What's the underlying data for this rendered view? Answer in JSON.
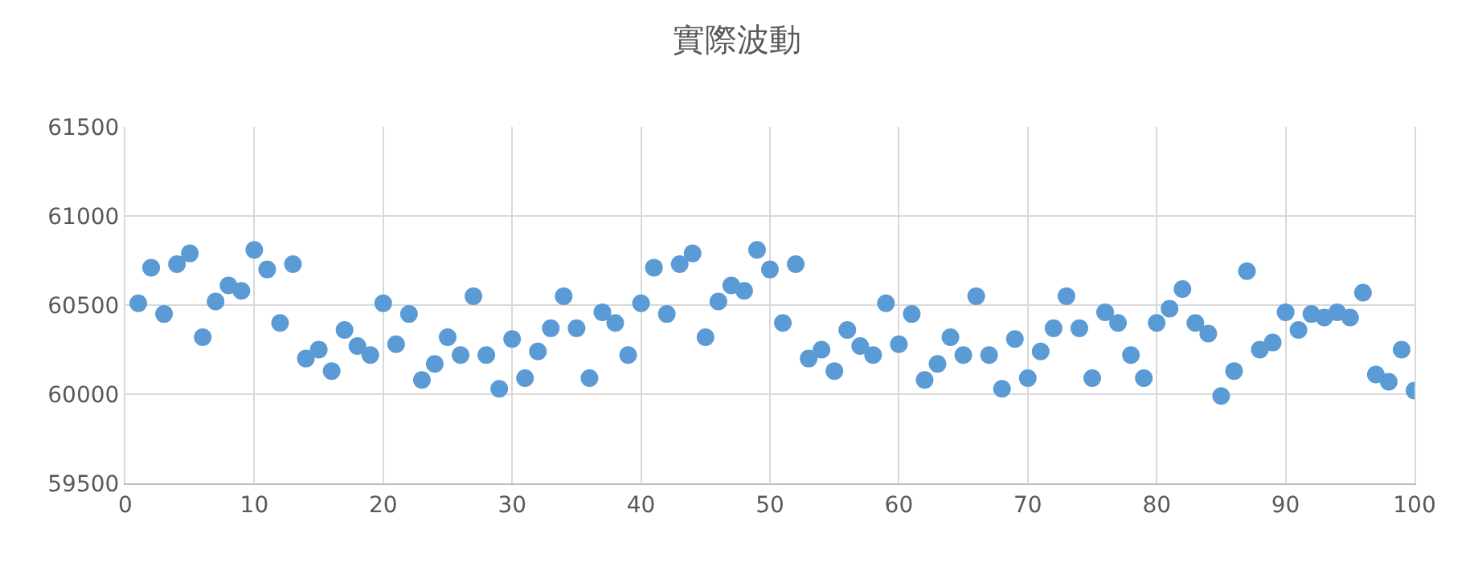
{
  "chart_data": {
    "type": "scatter",
    "title": "實際波動",
    "x": [
      1,
      2,
      3,
      4,
      5,
      6,
      7,
      8,
      9,
      10,
      11,
      12,
      13,
      14,
      15,
      16,
      17,
      18,
      19,
      20,
      21,
      22,
      23,
      24,
      25,
      26,
      27,
      28,
      29,
      30,
      31,
      32,
      33,
      34,
      35,
      36,
      37,
      38,
      39,
      40,
      41,
      42,
      43,
      44,
      45,
      46,
      47,
      48,
      49,
      50,
      51,
      52,
      53,
      54,
      55,
      56,
      57,
      58,
      59,
      60,
      61,
      62,
      63,
      64,
      65,
      66,
      67,
      68,
      69,
      70,
      71,
      72,
      73,
      74,
      75,
      76,
      77,
      78,
      79,
      80,
      81,
      82,
      83,
      84,
      85,
      86,
      87,
      88,
      89,
      90,
      91,
      92,
      93,
      94,
      95,
      96,
      97,
      98,
      99,
      100
    ],
    "series": [
      {
        "color": "#5b9bd5",
        "values": [
          60510,
          60710,
          60450,
          60730,
          60790,
          60320,
          60520,
          60610,
          60580,
          60810,
          60700,
          60400,
          60730,
          60200,
          60250,
          60130,
          60360,
          60270,
          60220,
          60510,
          60280,
          60450,
          60080,
          60170,
          60320,
          60220,
          60550,
          60220,
          60030,
          60310,
          60090,
          60240,
          60370,
          60550,
          60370,
          60090,
          60460,
          60400,
          60220,
          60510,
          60710,
          60450,
          60730,
          60790,
          60320,
          60520,
          60610,
          60580,
          60810,
          60700,
          60400,
          60730,
          60200,
          60250,
          60130,
          60360,
          60270,
          60220,
          60510,
          60280,
          60450,
          60080,
          60170,
          60320,
          60220,
          60550,
          60220,
          60030,
          60310,
          60090,
          60240,
          60370,
          60550,
          60370,
          60090,
          60460,
          60400,
          60220,
          60090,
          60400,
          60480,
          60590,
          60400,
          60340,
          59990,
          60130,
          60690,
          60250,
          60290,
          60460,
          60360,
          60450,
          60430,
          60460,
          60430,
          60570,
          60110,
          60070,
          60250,
          60020
        ]
      }
    ],
    "xlim": [
      0,
      100
    ],
    "xticks": [
      0,
      10,
      20,
      30,
      40,
      50,
      60,
      70,
      80,
      90,
      100
    ],
    "ylim": [
      59500,
      61500
    ],
    "yticks": [
      59500,
      60000,
      60500,
      61000,
      61500
    ],
    "grid": true,
    "marker": "circle"
  }
}
